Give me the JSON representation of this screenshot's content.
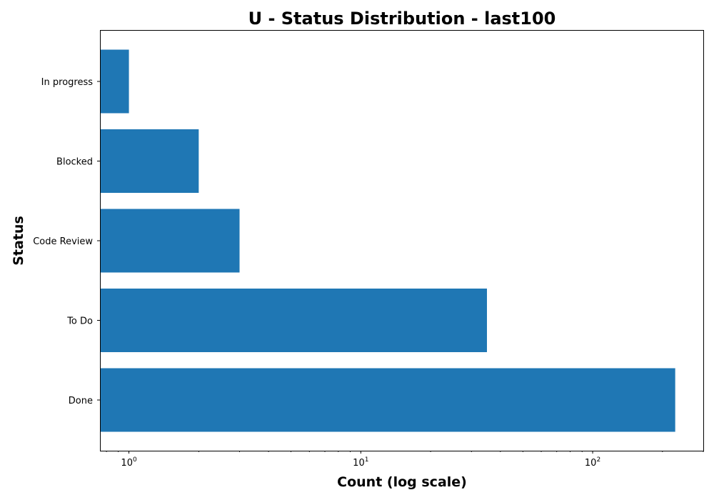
{
  "chart_data": {
    "type": "bar",
    "orientation": "horizontal",
    "title": "U - Status Distribution - last100",
    "xlabel": "Count (log scale)",
    "ylabel": "Status",
    "xscale": "log",
    "xlim": [
      0.75,
      300
    ],
    "x_major_ticks": [
      1,
      10,
      100
    ],
    "x_major_tick_labels": [
      "10^0",
      "10^1",
      "10^2"
    ],
    "categories": [
      "Done",
      "To Do",
      "Code Review",
      "Blocked",
      "In progress"
    ],
    "values": [
      227,
      35,
      3,
      2,
      1
    ],
    "bar_color": "#1f77b4",
    "grid": false,
    "legend": "none"
  }
}
